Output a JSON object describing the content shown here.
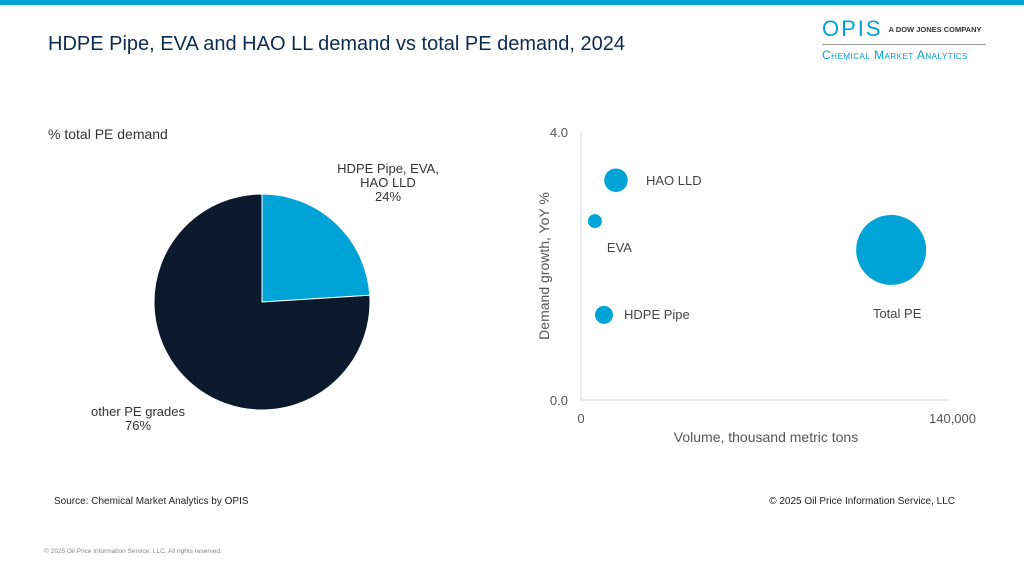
{
  "title": "HDPE Pipe, EVA and HAO LL demand vs total PE demand, 2024",
  "logo": {
    "brand": "OPIS",
    "tagline": "A DOW JONES COMPANY",
    "sub": "Chemical Market Analytics"
  },
  "colors": {
    "accent": "#00a3d6",
    "navy": "#0c1a2e",
    "title": "#0d2b4e"
  },
  "chart_data": [
    {
      "type": "pie",
      "title": "% total PE demand",
      "slices": [
        {
          "label": "HDPE Pipe, EVA, HAO LLD",
          "label_lines": [
            "HDPE Pipe, EVA,",
            "HAO LLD"
          ],
          "value": 24,
          "value_label": "24%",
          "color": "#00a3d6"
        },
        {
          "label": "other PE grades",
          "label_lines": [
            "other PE grades"
          ],
          "value": 76,
          "value_label": "76%",
          "color": "#0c1a2e"
        }
      ]
    },
    {
      "type": "scatter",
      "subtype": "bubble",
      "xlabel": "Volume, thousand metric tons",
      "ylabel": "Demand growth, YoY %",
      "xlim": [
        0,
        140000
      ],
      "ylim": [
        0,
        4.0
      ],
      "xticks": [
        "0",
        "140,000"
      ],
      "yticks": [
        "0.0",
        "4.0"
      ],
      "points": [
        {
          "label": "HAO LLD",
          "x": 13300,
          "y": 3.28,
          "size": 13300
        },
        {
          "label": "EVA",
          "x": 5300,
          "y": 2.67,
          "size": 4700
        },
        {
          "label": "HDPE Pipe",
          "x": 8750,
          "y": 1.27,
          "size": 7800
        },
        {
          "label": "Total PE",
          "x": 118000,
          "y": 2.24,
          "size": 118000
        }
      ]
    }
  ],
  "footer": {
    "source": "Source: Chemical Market Analytics by OPIS",
    "copyright": "© 2025 Oil Price Information Service, LLC",
    "rights": "© 2025 Oil Price Information Service, LLC. All rights reserved."
  }
}
